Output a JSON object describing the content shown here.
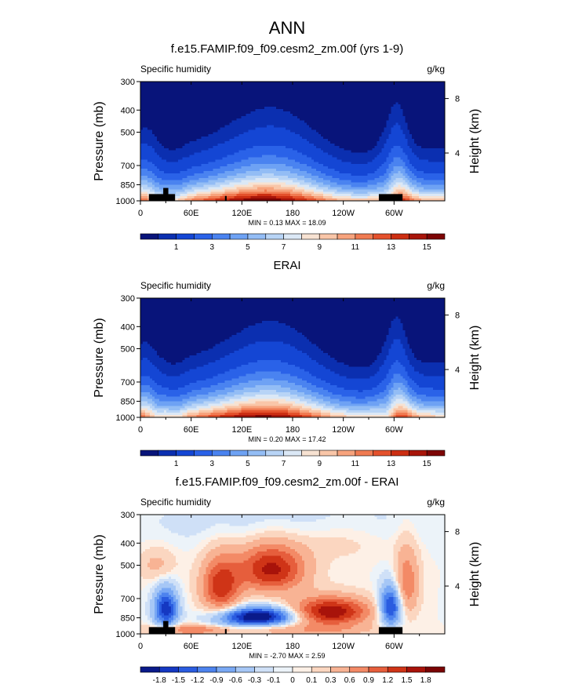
{
  "figure_title": "ANN",
  "colors": {
    "seq": [
      "#08147a",
      "#0b2fb0",
      "#1446d4",
      "#2a62e8",
      "#4a83f0",
      "#6ea2f4",
      "#93bdf5",
      "#b8d4f6",
      "#dbe8f6",
      "#f7e2d2",
      "#f9c6a8",
      "#f7a37d",
      "#f07b52",
      "#e4512c",
      "#cc2e12",
      "#a8150a",
      "#7d0505"
    ],
    "div": [
      "#0a1a8a",
      "#1538c2",
      "#2a5ce0",
      "#4d83ee",
      "#79a8f4",
      "#a6c7f6",
      "#cfe0f7",
      "#ecf3f9",
      "#fdf0e6",
      "#fbd6c0",
      "#f8b394",
      "#f38a66",
      "#e65e3c",
      "#cf3417",
      "#a8130a",
      "#7a0404"
    ]
  },
  "chart_data": [
    {
      "type": "heatmap",
      "title": "f.e15.FAMIP.f09_f09.cesm2_zm.00f (yrs 1-9)",
      "left_label": "Specific humidity",
      "units": "g/kg",
      "ylabel": "Pressure (mb)",
      "ylabel_right": "Height (km)",
      "x_ticks": [
        "0",
        "60E",
        "120E",
        "180",
        "120W",
        "60W"
      ],
      "x_tick_values": [
        0,
        60,
        120,
        180,
        240,
        300
      ],
      "xlim": [
        0,
        360
      ],
      "y_ticks": [
        "300",
        "400",
        "500",
        "700",
        "850",
        "1000"
      ],
      "y_tick_values": [
        300,
        400,
        500,
        700,
        850,
        1000
      ],
      "ylim": [
        300,
        1000
      ],
      "y_scale": "log",
      "right_ticks": [
        "8",
        "4"
      ],
      "right_tick_pressures": [
        356,
        617
      ],
      "stats": "MIN =   0.13  MAX =  18.09",
      "min": 0.13,
      "max": 18.09,
      "field": "model",
      "palette": "seq",
      "colorbar_labels": [
        "1",
        "3",
        "5",
        "7",
        "9",
        "11",
        "13",
        "15"
      ],
      "topography": [
        [
          10,
          41,
          934
        ],
        [
          27,
          33,
          878
        ],
        [
          100,
          102,
          952
        ],
        [
          282,
          310,
          934
        ]
      ]
    },
    {
      "type": "heatmap",
      "title": "ERAI",
      "left_label": "Specific humidity",
      "units": "g/kg",
      "ylabel": "Pressure (mb)",
      "ylabel_right": "Height (km)",
      "x_ticks": [
        "0",
        "60E",
        "120E",
        "180",
        "120W",
        "60W"
      ],
      "x_tick_values": [
        0,
        60,
        120,
        180,
        240,
        300
      ],
      "xlim": [
        0,
        360
      ],
      "y_ticks": [
        "300",
        "400",
        "500",
        "700",
        "850",
        "1000"
      ],
      "y_tick_values": [
        300,
        400,
        500,
        700,
        850,
        1000
      ],
      "ylim": [
        300,
        1000
      ],
      "y_scale": "log",
      "right_ticks": [
        "8",
        "4"
      ],
      "right_tick_pressures": [
        356,
        617
      ],
      "stats": "MIN =   0.20  MAX =  17.42",
      "min": 0.2,
      "max": 17.42,
      "field": "obs",
      "palette": "seq",
      "colorbar_labels": [
        "1",
        "3",
        "5",
        "7",
        "9",
        "11",
        "13",
        "15"
      ],
      "topography": []
    },
    {
      "type": "heatmap",
      "title": "f.e15.FAMIP.f09_f09.cesm2_zm.00f - ERAI",
      "left_label": "Specific humidity",
      "units": "g/kg",
      "ylabel": "Pressure (mb)",
      "ylabel_right": "Height (km)",
      "x_ticks": [
        "0",
        "60E",
        "120E",
        "180",
        "120W",
        "60W"
      ],
      "x_tick_values": [
        0,
        60,
        120,
        180,
        240,
        300
      ],
      "xlim": [
        0,
        360
      ],
      "y_ticks": [
        "300",
        "400",
        "500",
        "700",
        "850",
        "1000"
      ],
      "y_tick_values": [
        300,
        400,
        500,
        700,
        850,
        1000
      ],
      "ylim": [
        300,
        1000
      ],
      "y_scale": "log",
      "right_ticks": [
        "8",
        "4"
      ],
      "right_tick_pressures": [
        356,
        617
      ],
      "stats": "MIN =  -2.70  MAX =   2.59",
      "min": -2.7,
      "max": 2.59,
      "field": "diff",
      "palette": "div",
      "colorbar_labels": [
        "-1.8",
        "-1.5",
        "-1.2",
        "-0.9",
        "-0.6",
        "-0.3",
        "-0.1",
        "0",
        "0.1",
        "0.3",
        "0.6",
        "0.9",
        "1.2",
        "1.5",
        "1.8"
      ],
      "topography": [
        [
          10,
          41,
          934
        ],
        [
          27,
          33,
          878
        ],
        [
          100,
          102,
          952
        ],
        [
          282,
          310,
          934
        ]
      ]
    }
  ]
}
